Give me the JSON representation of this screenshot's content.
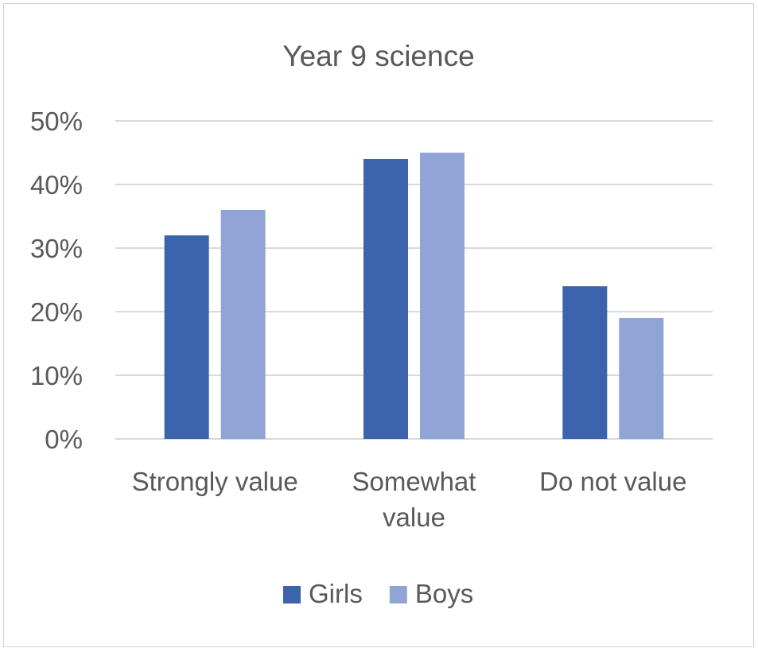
{
  "chart_data": {
    "type": "bar",
    "title": "Year 9 science",
    "xlabel": "",
    "ylabel": "",
    "categories": [
      [
        "Strongly value"
      ],
      [
        "Somewhat",
        "value"
      ],
      [
        "Do not value"
      ]
    ],
    "series": [
      {
        "name": "Girls",
        "values": [
          32,
          44,
          24
        ],
        "color": "#3C64AC"
      },
      {
        "name": "Boys",
        "values": [
          36,
          45,
          19
        ],
        "color": "#90A5D5"
      }
    ],
    "ylim": [
      0,
      50
    ],
    "yticks": [
      0,
      10,
      20,
      30,
      40,
      50
    ],
    "ytick_format": "%",
    "grid": true,
    "legend": "bottom"
  }
}
